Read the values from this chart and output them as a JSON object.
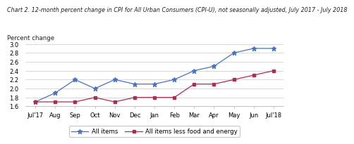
{
  "title": "Chart 2. 12-month percent change in CPI for All Urban Consumers (CPI-U), not seasonally adjusted, July 2017 - July 2018",
  "ylabel": "Percent change",
  "xlabels": [
    "Jul'17",
    "Aug",
    "Sep",
    "Oct",
    "Nov",
    "Dec",
    "Jan",
    "Feb",
    "Mar",
    "Apr",
    "May",
    "Jun",
    "Jul'18"
  ],
  "ylim": [
    1.6,
    3.0
  ],
  "yticks": [
    1.6,
    1.8,
    2.0,
    2.2,
    2.4,
    2.6,
    2.8,
    3.0
  ],
  "all_items": [
    1.7,
    1.9,
    2.2,
    2.0,
    2.2,
    2.1,
    2.1,
    2.2,
    2.4,
    2.5,
    2.8,
    2.9,
    2.9
  ],
  "less_food_energy": [
    1.7,
    1.7,
    1.7,
    1.8,
    1.7,
    1.8,
    1.8,
    1.8,
    2.1,
    2.1,
    2.2,
    2.3,
    2.4
  ],
  "all_items_color": "#4472c4",
  "less_food_color": "#b5294e",
  "background_color": "#ffffff",
  "grid_color": "#c8c8c8",
  "title_fontsize": 5.8,
  "ylabel_fontsize": 6.2,
  "tick_fontsize": 6.0,
  "legend_fontsize": 6.2
}
